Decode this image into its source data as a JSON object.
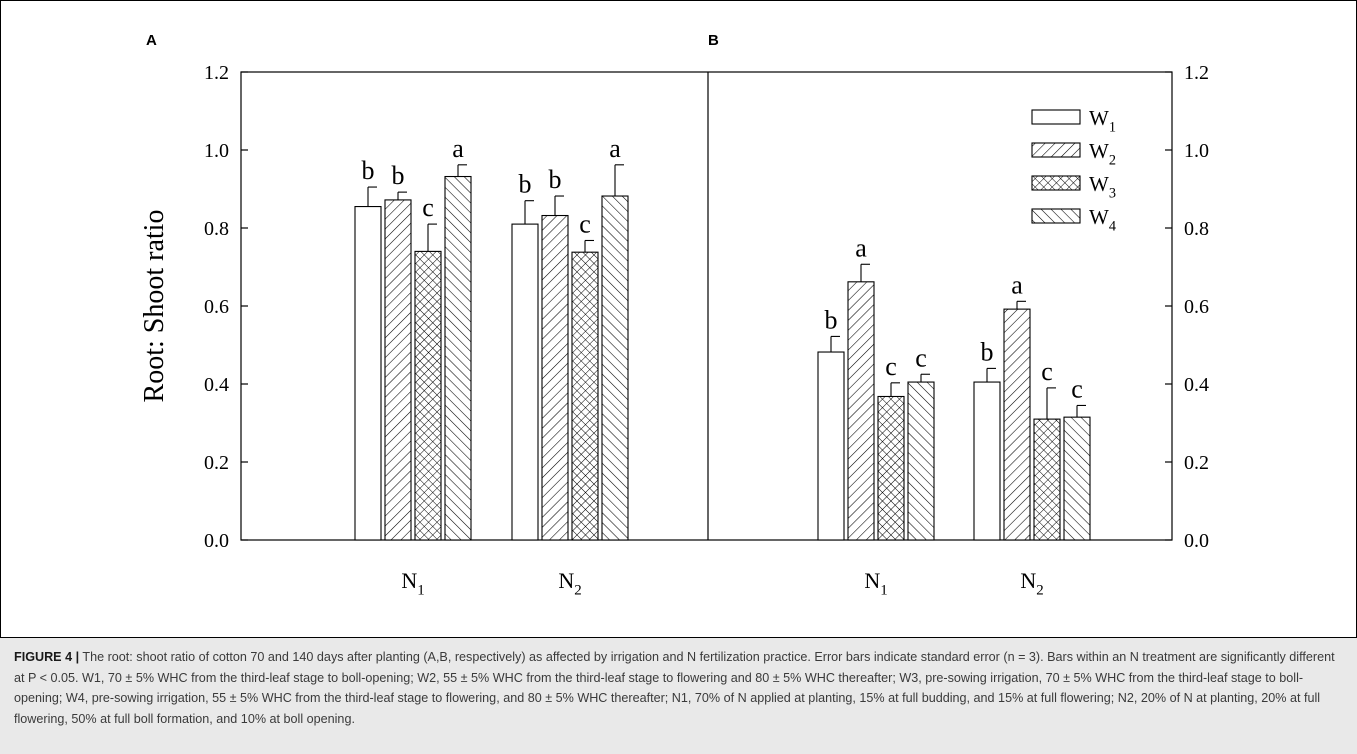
{
  "figure": {
    "caption_label": "FIGURE 4 |",
    "caption_text": "The root: shoot ratio of cotton 70 and 140 days after planting (A,B, respectively) as affected by irrigation and N fertilization practice. Error bars indicate standard error (n = 3). Bars within an N treatment are significantly different at P < 0.05. W1, 70 ± 5% WHC from the third-leaf stage to boll-opening; W2, 55 ± 5% WHC from the third-leaf stage to flowering and 80 ± 5% WHC thereafter; W3, pre-sowing irrigation, 70 ± 5% WHC from the third-leaf stage to boll-opening; W4, pre-sowing irrigation, 55 ± 5% WHC from the third-leaf stage to flowering, and 80 ± 5% WHC thereafter; N1, 70% of N applied at planting, 15% at full budding, and 15% at full flowering; N2, 20% of N at planting, 20% at full flowering, 50% at full boll formation, and 10% at boll opening."
  },
  "chart_data": {
    "type": "bar",
    "ylabel": "Root: Shoot ratio",
    "ylim": [
      0,
      1.2
    ],
    "yticks": [
      "0.0",
      "0.2",
      "0.4",
      "0.6",
      "0.8",
      "1.0",
      "1.2"
    ],
    "legend": {
      "placement": "top-right of panel B",
      "entries": [
        {
          "label": "W",
          "sub": "1",
          "pattern": "none"
        },
        {
          "label": "W",
          "sub": "2",
          "pattern": "diag-right"
        },
        {
          "label": "W",
          "sub": "3",
          "pattern": "cross"
        },
        {
          "label": "W",
          "sub": "4",
          "pattern": "diag-left"
        }
      ]
    },
    "panels": [
      {
        "label": "A",
        "groups": [
          {
            "label": "N",
            "sub": "1",
            "values": [
              0.855,
              0.872,
              0.74,
              0.932
            ],
            "errors": [
              0.05,
              0.02,
              0.07,
              0.03
            ],
            "letters": [
              "b",
              "b",
              "c",
              "a"
            ]
          },
          {
            "label": "N",
            "sub": "2",
            "values": [
              0.81,
              0.832,
              0.738,
              0.882
            ],
            "errors": [
              0.06,
              0.05,
              0.03,
              0.08
            ],
            "letters": [
              "b",
              "b",
              "c",
              "a"
            ]
          }
        ]
      },
      {
        "label": "B",
        "groups": [
          {
            "label": "N",
            "sub": "1",
            "values": [
              0.482,
              0.662,
              0.368,
              0.405
            ],
            "errors": [
              0.04,
              0.045,
              0.035,
              0.02
            ],
            "letters": [
              "b",
              "a",
              "c",
              "c"
            ]
          },
          {
            "label": "N",
            "sub": "2",
            "values": [
              0.405,
              0.592,
              0.31,
              0.315
            ],
            "errors": [
              0.035,
              0.02,
              0.08,
              0.03
            ],
            "letters": [
              "b",
              "a",
              "c",
              "c"
            ]
          }
        ]
      }
    ]
  }
}
